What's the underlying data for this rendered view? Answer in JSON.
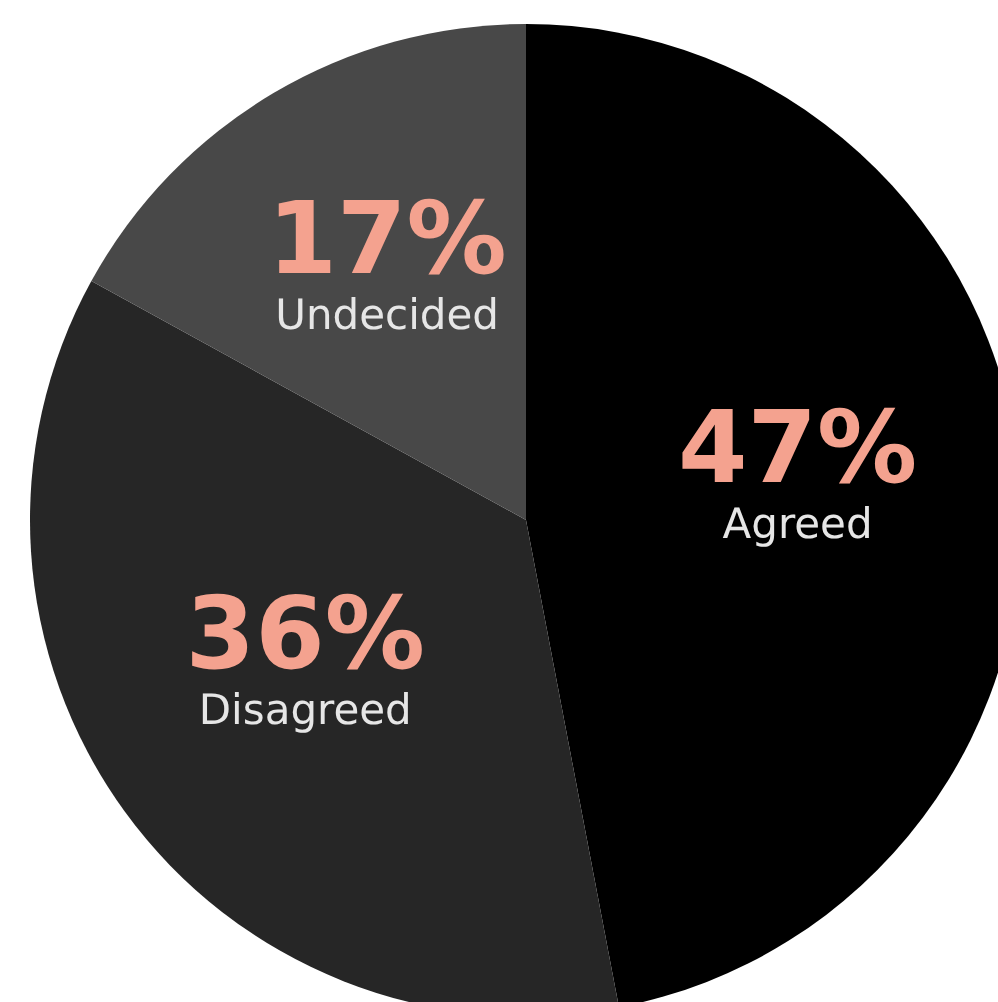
{
  "chart_data": {
    "type": "pie",
    "categories": [
      "Agreed",
      "Disagreed",
      "Undecided"
    ],
    "values": [
      47,
      36,
      17
    ],
    "colors": [
      "#000000",
      "#262626",
      "#484848"
    ],
    "value_labels": [
      "47%",
      "36%",
      "17%"
    ]
  }
}
